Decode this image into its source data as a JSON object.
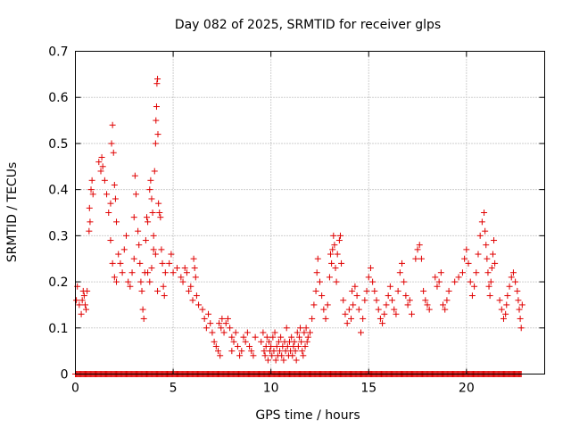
{
  "chart_data": {
    "type": "scatter",
    "title": "Day 082 of 2025, SRMTID for receiver glps",
    "xlabel": "GPS time / hours",
    "ylabel": "SRMTID / TECUs",
    "xlim": [
      0,
      24
    ],
    "ylim": [
      0,
      0.7
    ],
    "xticks": [
      0,
      5,
      10,
      15,
      20
    ],
    "xtick_labels": [
      "0",
      "5",
      "10",
      "15",
      "20"
    ],
    "yticks": [
      0,
      0.1,
      0.2,
      0.3,
      0.4,
      0.5,
      0.6,
      0.7
    ],
    "ytick_labels": [
      "0",
      "0.1",
      "0.2",
      "0.3",
      "0.4",
      "0.5",
      "0.6",
      "0.7"
    ],
    "grid": true,
    "marker": "+",
    "color": "#e00000",
    "series": [
      {
        "name": "SRMTID",
        "points": [
          [
            0.05,
            0.16
          ],
          [
            0.1,
            0.19
          ],
          [
            0.2,
            0.15
          ],
          [
            0.3,
            0.13
          ],
          [
            0.35,
            0.16
          ],
          [
            0.4,
            0.18
          ],
          [
            0.45,
            0.17
          ],
          [
            0.5,
            0.15
          ],
          [
            0.55,
            0.14
          ],
          [
            0.6,
            0.18
          ],
          [
            0.7,
            0.31
          ],
          [
            0.72,
            0.36
          ],
          [
            0.75,
            0.33
          ],
          [
            0.8,
            0.4
          ],
          [
            0.85,
            0.42
          ],
          [
            0.9,
            0.39
          ],
          [
            1.2,
            0.46
          ],
          [
            1.3,
            0.44
          ],
          [
            1.35,
            0.47
          ],
          [
            1.4,
            0.45
          ],
          [
            1.5,
            0.42
          ],
          [
            1.6,
            0.39
          ],
          [
            1.7,
            0.35
          ],
          [
            1.8,
            0.37
          ],
          [
            1.85,
            0.5
          ],
          [
            1.9,
            0.54
          ],
          [
            1.95,
            0.48
          ],
          [
            2.0,
            0.41
          ],
          [
            2.05,
            0.38
          ],
          [
            2.1,
            0.33
          ],
          [
            1.8,
            0.29
          ],
          [
            1.9,
            0.24
          ],
          [
            2.0,
            0.21
          ],
          [
            2.1,
            0.2
          ],
          [
            2.2,
            0.26
          ],
          [
            2.3,
            0.24
          ],
          [
            2.4,
            0.22
          ],
          [
            2.5,
            0.27
          ],
          [
            2.6,
            0.3
          ],
          [
            2.7,
            0.2
          ],
          [
            2.8,
            0.19
          ],
          [
            2.9,
            0.22
          ],
          [
            3.0,
            0.25
          ],
          [
            3.0,
            0.34
          ],
          [
            3.05,
            0.43
          ],
          [
            3.1,
            0.39
          ],
          [
            3.2,
            0.31
          ],
          [
            3.25,
            0.28
          ],
          [
            3.3,
            0.24
          ],
          [
            3.35,
            0.2
          ],
          [
            3.4,
            0.18
          ],
          [
            3.45,
            0.14
          ],
          [
            3.5,
            0.12
          ],
          [
            3.55,
            0.22
          ],
          [
            3.6,
            0.29
          ],
          [
            3.65,
            0.34
          ],
          [
            3.7,
            0.33
          ],
          [
            3.8,
            0.4
          ],
          [
            3.85,
            0.42
          ],
          [
            3.9,
            0.38
          ],
          [
            3.95,
            0.35
          ],
          [
            4.0,
            0.3
          ],
          [
            4.05,
            0.44
          ],
          [
            4.1,
            0.5
          ],
          [
            4.12,
            0.55
          ],
          [
            4.15,
            0.58
          ],
          [
            4.17,
            0.63
          ],
          [
            4.2,
            0.64
          ],
          [
            4.22,
            0.52
          ],
          [
            4.25,
            0.37
          ],
          [
            4.3,
            0.35
          ],
          [
            4.35,
            0.34
          ],
          [
            4.4,
            0.27
          ],
          [
            4.45,
            0.24
          ],
          [
            4.5,
            0.19
          ],
          [
            4.55,
            0.17
          ],
          [
            4.6,
            0.22
          ],
          [
            3.7,
            0.22
          ],
          [
            3.8,
            0.2
          ],
          [
            3.9,
            0.23
          ],
          [
            4.0,
            0.27
          ],
          [
            4.1,
            0.26
          ],
          [
            4.2,
            0.18
          ],
          [
            4.8,
            0.24
          ],
          [
            4.9,
            0.26
          ],
          [
            5.0,
            0.22
          ],
          [
            5.2,
            0.23
          ],
          [
            5.4,
            0.21
          ],
          [
            5.5,
            0.2
          ],
          [
            5.6,
            0.23
          ],
          [
            5.7,
            0.22
          ],
          [
            5.8,
            0.18
          ],
          [
            5.9,
            0.19
          ],
          [
            6.0,
            0.16
          ],
          [
            6.05,
            0.25
          ],
          [
            6.1,
            0.23
          ],
          [
            6.15,
            0.21
          ],
          [
            6.2,
            0.17
          ],
          [
            6.3,
            0.15
          ],
          [
            6.5,
            0.14
          ],
          [
            6.6,
            0.12
          ],
          [
            6.7,
            0.1
          ],
          [
            6.8,
            0.13
          ],
          [
            6.9,
            0.11
          ],
          [
            7.0,
            0.09
          ],
          [
            7.1,
            0.07
          ],
          [
            7.2,
            0.06
          ],
          [
            7.3,
            0.05
          ],
          [
            7.4,
            0.04
          ],
          [
            7.35,
            0.11
          ],
          [
            7.45,
            0.1
          ],
          [
            7.5,
            0.12
          ],
          [
            7.6,
            0.09
          ],
          [
            7.7,
            0.11
          ],
          [
            7.8,
            0.12
          ],
          [
            7.9,
            0.1
          ],
          [
            8.0,
            0.08
          ],
          [
            8.0,
            0.05
          ],
          [
            8.1,
            0.07
          ],
          [
            8.2,
            0.09
          ],
          [
            8.3,
            0.06
          ],
          [
            8.4,
            0.04
          ],
          [
            8.5,
            0.05
          ],
          [
            8.6,
            0.08
          ],
          [
            8.7,
            0.07
          ],
          [
            8.8,
            0.09
          ],
          [
            8.9,
            0.06
          ],
          [
            9.0,
            0.05
          ],
          [
            9.1,
            0.04
          ],
          [
            9.2,
            0.08
          ],
          [
            9.5,
            0.07
          ],
          [
            9.6,
            0.09
          ],
          [
            9.65,
            0.05
          ],
          [
            9.7,
            0.04
          ],
          [
            9.75,
            0.06
          ],
          [
            9.8,
            0.08
          ],
          [
            9.85,
            0.03
          ],
          [
            9.9,
            0.07
          ],
          [
            9.95,
            0.05
          ],
          [
            10.0,
            0.06
          ],
          [
            10.05,
            0.04
          ],
          [
            10.1,
            0.08
          ],
          [
            10.15,
            0.05
          ],
          [
            10.2,
            0.09
          ],
          [
            10.25,
            0.03
          ],
          [
            10.3,
            0.06
          ],
          [
            10.35,
            0.04
          ],
          [
            10.4,
            0.07
          ],
          [
            10.45,
            0.05
          ],
          [
            10.5,
            0.08
          ],
          [
            10.55,
            0.04
          ],
          [
            10.6,
            0.06
          ],
          [
            10.65,
            0.03
          ],
          [
            10.7,
            0.07
          ],
          [
            10.75,
            0.05
          ],
          [
            10.8,
            0.1
          ],
          [
            10.85,
            0.06
          ],
          [
            10.9,
            0.04
          ],
          [
            10.95,
            0.07
          ],
          [
            11.0,
            0.05
          ],
          [
            11.05,
            0.08
          ],
          [
            11.1,
            0.04
          ],
          [
            11.15,
            0.06
          ],
          [
            11.2,
            0.07
          ],
          [
            11.25,
            0.05
          ],
          [
            11.3,
            0.03
          ],
          [
            11.35,
            0.09
          ],
          [
            11.4,
            0.06
          ],
          [
            11.45,
            0.08
          ],
          [
            11.5,
            0.1
          ],
          [
            11.55,
            0.07
          ],
          [
            11.6,
            0.05
          ],
          [
            11.65,
            0.04
          ],
          [
            11.7,
            0.09
          ],
          [
            11.75,
            0.06
          ],
          [
            11.8,
            0.1
          ],
          [
            11.85,
            0.07
          ],
          [
            11.9,
            0.08
          ],
          [
            12.0,
            0.09
          ],
          [
            12.1,
            0.12
          ],
          [
            12.2,
            0.15
          ],
          [
            12.3,
            0.18
          ],
          [
            12.35,
            0.22
          ],
          [
            12.4,
            0.25
          ],
          [
            12.5,
            0.2
          ],
          [
            12.6,
            0.17
          ],
          [
            12.7,
            0.14
          ],
          [
            12.8,
            0.12
          ],
          [
            12.9,
            0.15
          ],
          [
            13.0,
            0.21
          ],
          [
            13.05,
            0.26
          ],
          [
            13.1,
            0.24
          ],
          [
            13.15,
            0.27
          ],
          [
            13.2,
            0.3
          ],
          [
            13.25,
            0.28
          ],
          [
            13.3,
            0.23
          ],
          [
            13.35,
            0.2
          ],
          [
            13.4,
            0.26
          ],
          [
            13.5,
            0.29
          ],
          [
            13.55,
            0.3
          ],
          [
            13.6,
            0.24
          ],
          [
            13.7,
            0.16
          ],
          [
            13.8,
            0.13
          ],
          [
            13.9,
            0.11
          ],
          [
            14.0,
            0.14
          ],
          [
            14.1,
            0.12
          ],
          [
            14.15,
            0.18
          ],
          [
            14.2,
            0.15
          ],
          [
            14.3,
            0.19
          ],
          [
            14.4,
            0.17
          ],
          [
            14.5,
            0.14
          ],
          [
            14.6,
            0.09
          ],
          [
            14.7,
            0.12
          ],
          [
            14.8,
            0.16
          ],
          [
            14.9,
            0.18
          ],
          [
            15.0,
            0.21
          ],
          [
            15.1,
            0.23
          ],
          [
            15.2,
            0.2
          ],
          [
            15.3,
            0.18
          ],
          [
            15.4,
            0.16
          ],
          [
            15.5,
            0.14
          ],
          [
            15.6,
            0.12
          ],
          [
            15.7,
            0.11
          ],
          [
            15.8,
            0.13
          ],
          [
            15.9,
            0.15
          ],
          [
            16.0,
            0.17
          ],
          [
            16.1,
            0.19
          ],
          [
            16.2,
            0.16
          ],
          [
            16.3,
            0.14
          ],
          [
            16.4,
            0.13
          ],
          [
            16.5,
            0.18
          ],
          [
            16.6,
            0.22
          ],
          [
            16.7,
            0.24
          ],
          [
            16.8,
            0.2
          ],
          [
            16.9,
            0.17
          ],
          [
            17.0,
            0.15
          ],
          [
            17.1,
            0.16
          ],
          [
            17.2,
            0.13
          ],
          [
            17.4,
            0.25
          ],
          [
            17.5,
            0.27
          ],
          [
            17.6,
            0.28
          ],
          [
            17.7,
            0.25
          ],
          [
            17.8,
            0.18
          ],
          [
            17.9,
            0.16
          ],
          [
            18.0,
            0.15
          ],
          [
            18.1,
            0.14
          ],
          [
            18.4,
            0.21
          ],
          [
            18.5,
            0.19
          ],
          [
            18.6,
            0.2
          ],
          [
            18.7,
            0.22
          ],
          [
            18.8,
            0.15
          ],
          [
            18.9,
            0.14
          ],
          [
            19.0,
            0.16
          ],
          [
            19.1,
            0.18
          ],
          [
            19.4,
            0.2
          ],
          [
            19.6,
            0.21
          ],
          [
            19.8,
            0.22
          ],
          [
            19.9,
            0.25
          ],
          [
            20.0,
            0.27
          ],
          [
            20.1,
            0.24
          ],
          [
            20.2,
            0.2
          ],
          [
            20.3,
            0.17
          ],
          [
            20.4,
            0.19
          ],
          [
            20.5,
            0.22
          ],
          [
            20.6,
            0.26
          ],
          [
            20.7,
            0.3
          ],
          [
            20.8,
            0.33
          ],
          [
            20.9,
            0.35
          ],
          [
            20.95,
            0.31
          ],
          [
            21.0,
            0.28
          ],
          [
            21.05,
            0.25
          ],
          [
            21.1,
            0.22
          ],
          [
            21.15,
            0.19
          ],
          [
            21.2,
            0.17
          ],
          [
            21.25,
            0.2
          ],
          [
            21.3,
            0.23
          ],
          [
            21.35,
            0.26
          ],
          [
            21.4,
            0.29
          ],
          [
            21.45,
            0.24
          ],
          [
            21.7,
            0.16
          ],
          [
            21.8,
            0.14
          ],
          [
            21.9,
            0.12
          ],
          [
            22.0,
            0.13
          ],
          [
            22.05,
            0.15
          ],
          [
            22.1,
            0.17
          ],
          [
            22.2,
            0.19
          ],
          [
            22.3,
            0.21
          ],
          [
            22.4,
            0.22
          ],
          [
            22.5,
            0.2
          ],
          [
            22.6,
            0.18
          ],
          [
            22.65,
            0.16
          ],
          [
            22.7,
            0.14
          ],
          [
            22.75,
            0.12
          ],
          [
            22.8,
            0.1
          ],
          [
            22.85,
            0.15
          ]
        ],
        "baseline_y": 0,
        "baseline_x_range": [
          0,
          22.8
        ]
      }
    ]
  }
}
